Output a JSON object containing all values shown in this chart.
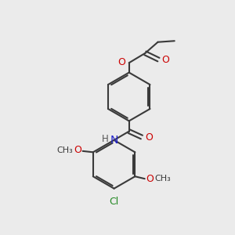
{
  "bg_color": "#ebebeb",
  "bond_color": "#3a3a3a",
  "atom_colors": {
    "O": "#cc0000",
    "N": "#2222cc",
    "Cl": "#228822",
    "C": "#3a3a3a",
    "H": "#555555"
  },
  "font_size": 8.5,
  "line_width": 1.5
}
